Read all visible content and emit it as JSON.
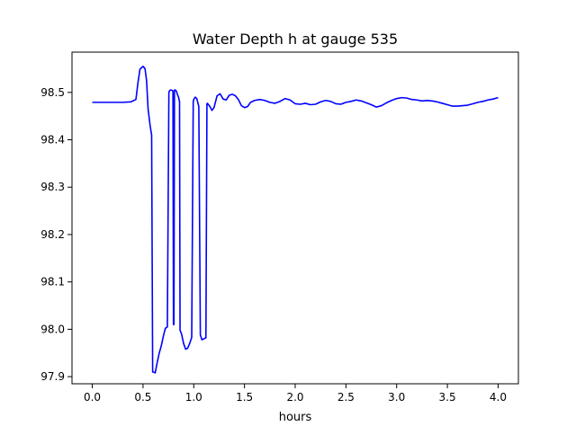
{
  "chart_data": {
    "type": "line",
    "title": "Water Depth h at gauge 535",
    "xlabel": "hours",
    "ylabel": "",
    "xlim": [
      -0.2,
      4.2
    ],
    "ylim": [
      97.885,
      98.585
    ],
    "x_ticks": [
      0.0,
      0.5,
      1.0,
      1.5,
      2.0,
      2.5,
      3.0,
      3.5,
      4.0
    ],
    "x_tick_labels": [
      "0.0",
      "0.5",
      "1.0",
      "1.5",
      "2.0",
      "2.5",
      "3.0",
      "3.5",
      "4.0"
    ],
    "y_ticks": [
      97.9,
      98.0,
      98.1,
      98.2,
      98.3,
      98.4,
      98.5
    ],
    "y_tick_labels": [
      "97.9",
      "98.0",
      "98.1",
      "98.2",
      "98.3",
      "98.4",
      "98.5"
    ],
    "grid": false,
    "legend": false,
    "line_color": "#0000ff",
    "series": [
      {
        "x": [
          0.0,
          0.1,
          0.2,
          0.3,
          0.38,
          0.43,
          0.45,
          0.47,
          0.5,
          0.52,
          0.535,
          0.55,
          0.57,
          0.585,
          0.595,
          0.6,
          0.62,
          0.64,
          0.66,
          0.68,
          0.7,
          0.72,
          0.74,
          0.755,
          0.76,
          0.77,
          0.78,
          0.795,
          0.8,
          0.805,
          0.81,
          0.82,
          0.83,
          0.84,
          0.85,
          0.86,
          0.865,
          0.88,
          0.9,
          0.92,
          0.94,
          0.96,
          0.98,
          0.995,
          1.0,
          1.015,
          1.03,
          1.05,
          1.065,
          1.07,
          1.08,
          1.1,
          1.12,
          1.13,
          1.135,
          1.16,
          1.18,
          1.2,
          1.23,
          1.26,
          1.29,
          1.32,
          1.35,
          1.38,
          1.41,
          1.44,
          1.47,
          1.5,
          1.53,
          1.56,
          1.6,
          1.65,
          1.7,
          1.75,
          1.8,
          1.85,
          1.9,
          1.95,
          2.0,
          2.05,
          2.1,
          2.15,
          2.2,
          2.25,
          2.3,
          2.35,
          2.4,
          2.45,
          2.5,
          2.55,
          2.6,
          2.65,
          2.7,
          2.75,
          2.8,
          2.85,
          2.9,
          2.95,
          3.0,
          3.05,
          3.1,
          3.15,
          3.2,
          3.25,
          3.3,
          3.35,
          3.4,
          3.45,
          3.5,
          3.55,
          3.6,
          3.65,
          3.7,
          3.75,
          3.8,
          3.85,
          3.9,
          3.95,
          4.0
        ],
        "y": [
          98.479,
          98.479,
          98.479,
          98.479,
          98.48,
          98.485,
          98.52,
          98.549,
          98.555,
          98.55,
          98.525,
          98.465,
          98.43,
          98.41,
          97.91,
          97.91,
          97.908,
          97.93,
          97.95,
          97.965,
          97.985,
          98.002,
          98.005,
          98.5,
          98.503,
          98.505,
          98.505,
          98.503,
          98.01,
          98.01,
          98.505,
          98.505,
          98.502,
          98.495,
          98.49,
          98.48,
          97.998,
          97.99,
          97.97,
          97.958,
          97.96,
          97.97,
          97.983,
          98.48,
          98.485,
          98.49,
          98.487,
          98.47,
          97.988,
          97.985,
          97.978,
          97.98,
          97.982,
          98.476,
          98.477,
          98.47,
          98.462,
          98.468,
          98.493,
          98.497,
          98.486,
          98.484,
          98.494,
          98.496,
          98.493,
          98.485,
          98.472,
          98.468,
          98.47,
          98.479,
          98.483,
          98.485,
          98.483,
          98.479,
          98.477,
          98.481,
          98.487,
          98.484,
          98.476,
          98.475,
          98.477,
          98.474,
          98.475,
          98.48,
          98.483,
          98.481,
          98.476,
          98.475,
          98.479,
          98.481,
          98.484,
          98.482,
          98.478,
          98.474,
          98.469,
          98.472,
          98.478,
          98.483,
          98.487,
          98.489,
          98.488,
          98.485,
          98.484,
          98.482,
          98.483,
          98.482,
          98.48,
          98.477,
          98.474,
          98.471,
          98.471,
          98.472,
          98.473,
          98.476,
          98.479,
          98.481,
          98.484,
          98.486,
          98.489
        ]
      }
    ]
  }
}
